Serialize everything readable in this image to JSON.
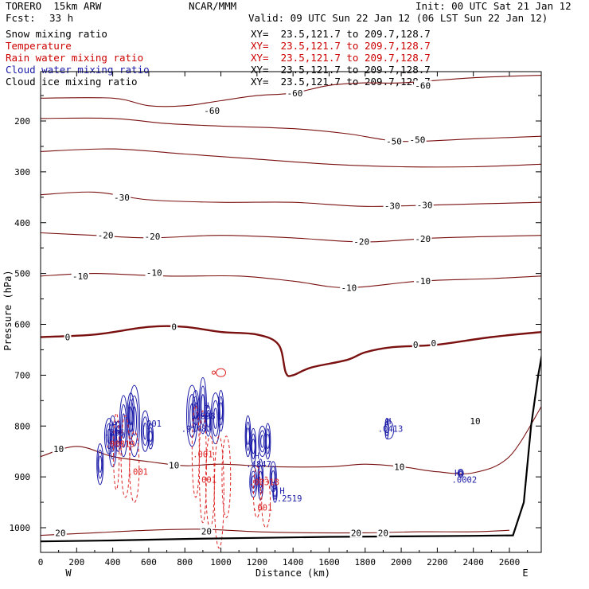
{
  "header": {
    "model": "TORERO  15km ARW",
    "center": "NCAR/MMM",
    "init": "Init: 00 UTC Sat 21 Jan 12",
    "fcst_label": "Fcst:",
    "fcst_value": "33 h",
    "valid": "Valid: 09 UTC Sun 22 Jan 12 (06 LST Sun 22 Jan 12)"
  },
  "fields": [
    {
      "name": "Snow mixing ratio",
      "xy": "XY=  23.5,121.7 to 209.7,128.7",
      "color": "#000000",
      "xycolor": "#000000"
    },
    {
      "name": "Temperature",
      "xy": "XY=  23.5,121.7 to 209.7,128.7",
      "color": "#cc0000",
      "xycolor": "#cc0000"
    },
    {
      "name": "Rain water mixing ratio",
      "xy": "XY=  23.5,121.7 to 209.7,128.7",
      "color": "#cc0000",
      "xycolor": "#cc0000"
    },
    {
      "name": "Cloud water mixing ratio",
      "xy": "XY=  23.5,121.7 to 209.7,128.7",
      "color": "#1a1aa8",
      "xycolor": "#000000"
    },
    {
      "name": "Cloud ice mixing ratio",
      "xy": "XY=  23.5,121.7 to 209.7,128.7",
      "color": "#000000",
      "xycolor": "#000000"
    }
  ],
  "colors": {
    "temperature": "#7a1010",
    "freezing": "#7a1010",
    "rain": "#dd2222",
    "cloud": "#1a1aa8",
    "terrain": "#000000"
  },
  "chart_data": {
    "type": "contour",
    "xlabel": "Distance (km)",
    "ylabel": "Pressure (hPa)",
    "x_ticks": [
      0,
      200,
      400,
      600,
      800,
      1000,
      1200,
      1400,
      1600,
      1800,
      2000,
      2200,
      2400,
      2600
    ],
    "y_ticks": [
      200,
      300,
      400,
      500,
      600,
      700,
      800,
      900,
      1000
    ],
    "xlim": [
      0,
      2800
    ],
    "ylim": [
      1050,
      100
    ],
    "x_end_labels": [
      "W",
      "E"
    ],
    "temperature_contours": [
      {
        "level": -60,
        "labels": [
          {
            "x": 950,
            "p": 180,
            "t": "-60"
          },
          {
            "x": 1410,
            "p": 145,
            "t": "-60"
          },
          {
            "x": 2120,
            "p": 130,
            "t": "-60"
          }
        ],
        "points": [
          [
            0,
            155
          ],
          [
            400,
            155
          ],
          [
            600,
            170
          ],
          [
            800,
            170
          ],
          [
            1000,
            160
          ],
          [
            1200,
            150
          ],
          [
            1400,
            145
          ],
          [
            1600,
            130
          ],
          [
            1800,
            125
          ],
          [
            2000,
            125
          ],
          [
            2400,
            115
          ],
          [
            2780,
            110
          ]
        ]
      },
      {
        "level": -50,
        "labels": [
          {
            "x": 1960,
            "p": 240,
            "t": "-50"
          },
          {
            "x": 2090,
            "p": 237,
            "t": "-50"
          }
        ],
        "points": [
          [
            0,
            195
          ],
          [
            400,
            195
          ],
          [
            700,
            205
          ],
          [
            1000,
            210
          ],
          [
            1400,
            215
          ],
          [
            1700,
            225
          ],
          [
            2000,
            240
          ],
          [
            2400,
            235
          ],
          [
            2780,
            230
          ]
        ]
      },
      {
        "level": -40,
        "labels": [],
        "points": [
          [
            0,
            260
          ],
          [
            400,
            255
          ],
          [
            800,
            265
          ],
          [
            1200,
            275
          ],
          [
            1600,
            285
          ],
          [
            2000,
            290
          ],
          [
            2400,
            290
          ],
          [
            2780,
            285
          ]
        ]
      },
      {
        "level": -30,
        "labels": [
          {
            "x": 450,
            "p": 350,
            "t": "-30"
          },
          {
            "x": 1950,
            "p": 367,
            "t": "-30"
          },
          {
            "x": 2130,
            "p": 365,
            "t": "-30"
          }
        ],
        "points": [
          [
            0,
            345
          ],
          [
            300,
            340
          ],
          [
            600,
            355
          ],
          [
            1000,
            360
          ],
          [
            1400,
            360
          ],
          [
            1800,
            368
          ],
          [
            2200,
            365
          ],
          [
            2780,
            360
          ]
        ]
      },
      {
        "level": -20,
        "labels": [
          {
            "x": 360,
            "p": 425,
            "t": "-20"
          },
          {
            "x": 620,
            "p": 427,
            "t": "-20"
          },
          {
            "x": 1780,
            "p": 437,
            "t": "-20"
          },
          {
            "x": 2120,
            "p": 432,
            "t": "-20"
          }
        ],
        "points": [
          [
            0,
            420
          ],
          [
            300,
            425
          ],
          [
            600,
            430
          ],
          [
            1000,
            425
          ],
          [
            1400,
            430
          ],
          [
            1800,
            438
          ],
          [
            2200,
            430
          ],
          [
            2780,
            425
          ]
        ]
      },
      {
        "level": -10,
        "labels": [
          {
            "x": 220,
            "p": 505,
            "t": "-10"
          },
          {
            "x": 630,
            "p": 498,
            "t": "-10"
          },
          {
            "x": 1710,
            "p": 528,
            "t": "-10"
          },
          {
            "x": 2120,
            "p": 515,
            "t": "-10"
          }
        ],
        "points": [
          [
            0,
            505
          ],
          [
            300,
            500
          ],
          [
            700,
            505
          ],
          [
            1100,
            505
          ],
          [
            1400,
            515
          ],
          [
            1700,
            528
          ],
          [
            2100,
            515
          ],
          [
            2500,
            510
          ],
          [
            2780,
            505
          ]
        ]
      },
      {
        "level": 0,
        "labels": [
          {
            "x": 150,
            "p": 625,
            "t": "0"
          },
          {
            "x": 740,
            "p": 605,
            "t": "0"
          },
          {
            "x": 2080,
            "p": 640,
            "t": "0"
          },
          {
            "x": 2180,
            "p": 637,
            "t": "0"
          }
        ],
        "points": [
          [
            0,
            625
          ],
          [
            300,
            620
          ],
          [
            600,
            605
          ],
          [
            800,
            605
          ],
          [
            1000,
            615
          ],
          [
            1200,
            620
          ],
          [
            1320,
            640
          ],
          [
            1360,
            695
          ],
          [
            1400,
            700
          ],
          [
            1500,
            685
          ],
          [
            1700,
            670
          ],
          [
            1800,
            655
          ],
          [
            1950,
            645
          ],
          [
            2200,
            640
          ],
          [
            2500,
            625
          ],
          [
            2780,
            615
          ]
        ]
      },
      {
        "level": 10,
        "labels": [
          {
            "x": 100,
            "p": 845,
            "t": "10"
          },
          {
            "x": 740,
            "p": 877,
            "t": "10"
          },
          {
            "x": 1990,
            "p": 880,
            "t": "10"
          },
          {
            "x": 2410,
            "p": 790,
            "t": "10"
          }
        ],
        "points": [
          [
            0,
            860
          ],
          [
            200,
            840
          ],
          [
            400,
            860
          ],
          [
            600,
            870
          ],
          [
            800,
            878
          ],
          [
            1000,
            875
          ],
          [
            1300,
            880
          ],
          [
            1600,
            880
          ],
          [
            1800,
            875
          ],
          [
            2000,
            880
          ],
          [
            2200,
            890
          ],
          [
            2400,
            892
          ],
          [
            2600,
            860
          ],
          [
            2780,
            760
          ]
        ]
      },
      {
        "level": 20,
        "labels": [
          {
            "x": 110,
            "p": 1010,
            "t": "20"
          },
          {
            "x": 920,
            "p": 1007,
            "t": "20"
          },
          {
            "x": 1750,
            "p": 1010,
            "t": "20"
          },
          {
            "x": 1900,
            "p": 1010,
            "t": "20"
          }
        ],
        "points": [
          [
            0,
            1015
          ],
          [
            300,
            1010
          ],
          [
            600,
            1005
          ],
          [
            900,
            1003
          ],
          [
            1200,
            1008
          ],
          [
            1500,
            1010
          ],
          [
            1800,
            1010
          ],
          [
            2100,
            1008
          ],
          [
            2400,
            1008
          ],
          [
            2600,
            1005
          ]
        ]
      }
    ],
    "rain_mixing_ratio_labels": [
      {
        "x": 440,
        "p": 835,
        "t": ".00819"
      },
      {
        "x": 540,
        "p": 890,
        "t": ".001"
      },
      {
        "x": 900,
        "p": 855,
        "t": ".001"
      },
      {
        "x": 920,
        "p": 905,
        "t": ".001"
      },
      {
        "x": 1240,
        "p": 910,
        "t": ".00318"
      },
      {
        "x": 1230,
        "p": 960,
        "t": ".001"
      }
    ],
    "cloud_mixing_ratio_labels": [
      {
        "x": 410,
        "p": 797,
        "t": "H"
      },
      {
        "x": 410,
        "p": 813,
        "t": ".596"
      },
      {
        "x": 615,
        "p": 795,
        "t": ".001"
      },
      {
        "x": 920,
        "p": 760,
        "t": "H"
      },
      {
        "x": 900,
        "p": 780,
        "t": ".7698"
      },
      {
        "x": 850,
        "p": 805,
        "t": ".9148"
      },
      {
        "x": 1200,
        "p": 858,
        "t": "H"
      },
      {
        "x": 1210,
        "p": 875,
        "t": ".4847"
      },
      {
        "x": 1340,
        "p": 927,
        "t": "H"
      },
      {
        "x": 1380,
        "p": 942,
        "t": ".2519"
      },
      {
        "x": 1930,
        "p": 790,
        "t": "H"
      },
      {
        "x": 1940,
        "p": 805,
        "t": ".0413"
      },
      {
        "x": 2310,
        "p": 892,
        "t": "H"
      },
      {
        "x": 2350,
        "p": 905,
        "t": ".0002"
      }
    ],
    "terrain_surface": [
      [
        0,
        1027
      ],
      [
        400,
        1025
      ],
      [
        800,
        1022
      ],
      [
        1200,
        1020
      ],
      [
        1600,
        1018
      ],
      [
        2000,
        1017
      ],
      [
        2400,
        1016
      ],
      [
        2620,
        1015
      ],
      [
        2680,
        950
      ],
      [
        2720,
        800
      ],
      [
        2760,
        700
      ],
      [
        2790,
        640
      ]
    ]
  }
}
